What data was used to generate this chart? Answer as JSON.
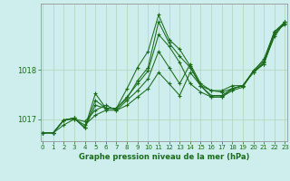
{
  "title": "Graphe pression niveau de la mer (hPa)",
  "bg_color": "#cdeeed",
  "line_color": "#1a6b1a",
  "grid_color": "#aaccaa",
  "ylim": [
    1016.55,
    1019.35
  ],
  "xlim": [
    -0.2,
    23.2
  ],
  "ytick_vals": [
    1017.0,
    1018.0
  ],
  "xtick_vals": [
    0,
    1,
    2,
    3,
    4,
    5,
    6,
    7,
    8,
    9,
    10,
    11,
    12,
    13,
    14,
    15,
    16,
    17,
    18,
    19,
    20,
    21,
    22,
    23
  ],
  "series": [
    [
      1016.72,
      1016.72,
      1016.88,
      1017.0,
      1016.88,
      1017.08,
      1017.18,
      1017.18,
      1017.28,
      1017.45,
      1017.62,
      1017.95,
      1017.72,
      1017.48,
      1017.95,
      1017.68,
      1017.58,
      1017.58,
      1017.68,
      1017.68,
      1017.95,
      1018.12,
      1018.72,
      1018.98
    ],
    [
      1016.72,
      1016.72,
      1016.98,
      1017.0,
      1016.95,
      1017.18,
      1017.28,
      1017.18,
      1017.38,
      1017.58,
      1017.82,
      1018.38,
      1018.05,
      1017.72,
      1018.12,
      1017.72,
      1017.58,
      1017.55,
      1017.62,
      1017.68,
      1017.95,
      1018.15,
      1018.68,
      1018.98
    ],
    [
      1016.72,
      1016.72,
      1016.98,
      1017.02,
      1016.82,
      1017.28,
      1017.22,
      1017.22,
      1017.42,
      1017.78,
      1018.05,
      1018.98,
      1018.55,
      1018.28,
      1018.05,
      1017.68,
      1017.48,
      1017.48,
      1017.62,
      1017.68,
      1017.98,
      1018.22,
      1018.78,
      1018.98
    ],
    [
      1016.72,
      1016.72,
      1016.98,
      1017.02,
      1016.82,
      1017.38,
      1017.22,
      1017.22,
      1017.45,
      1017.72,
      1017.98,
      1018.72,
      1018.48,
      1018.15,
      1017.72,
      1017.55,
      1017.45,
      1017.45,
      1017.62,
      1017.68,
      1017.98,
      1018.18,
      1018.78,
      1018.95
    ],
    [
      1016.72,
      1016.72,
      1016.98,
      1017.02,
      1016.82,
      1017.52,
      1017.22,
      1017.22,
      1017.62,
      1018.05,
      1018.38,
      1019.12,
      1018.62,
      1018.42,
      1018.08,
      1017.68,
      1017.45,
      1017.45,
      1017.58,
      1017.65,
      1017.98,
      1018.12,
      1018.78,
      1018.92
    ]
  ]
}
